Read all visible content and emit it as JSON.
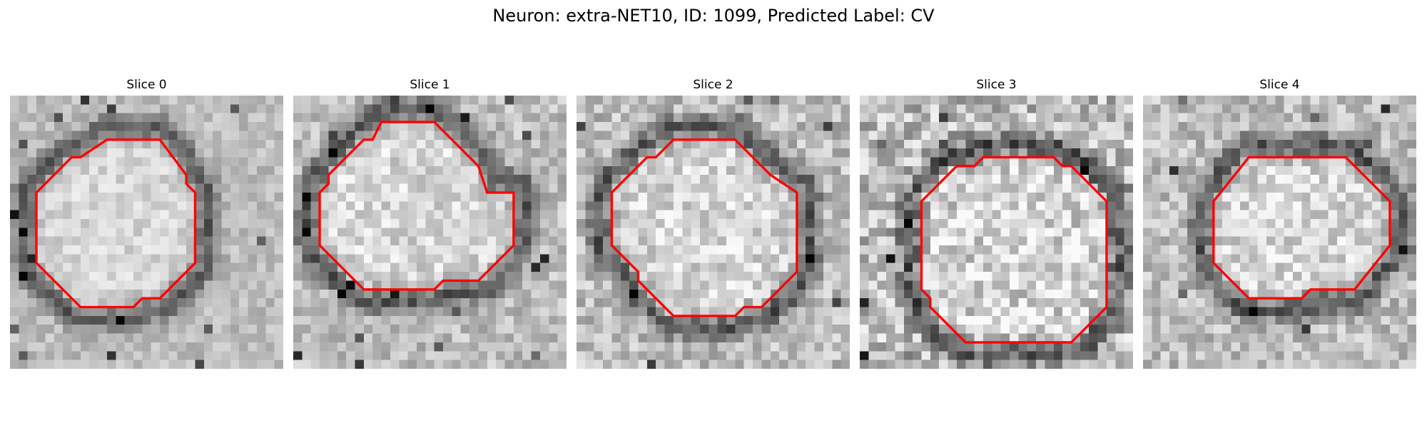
{
  "figure": {
    "title": "Neuron: extra-NET10, ID: 1099, Predicted Label: CV"
  },
  "contour_color": "#ff0000",
  "colormap": "gray",
  "grid_size": 31,
  "panels": [
    {
      "title": "Slice 0",
      "contour": [
        [
          11,
          5
        ],
        [
          17,
          5
        ],
        [
          20,
          9
        ],
        [
          20,
          10
        ],
        [
          21,
          11
        ],
        [
          21,
          19
        ],
        [
          17,
          23
        ],
        [
          15,
          23
        ],
        [
          14,
          24
        ],
        [
          8,
          24
        ],
        [
          3,
          19
        ],
        [
          3,
          11
        ],
        [
          7,
          7
        ],
        [
          8,
          7
        ]
      ]
    },
    {
      "title": "Slice 1",
      "contour": [
        [
          10,
          3
        ],
        [
          16,
          3
        ],
        [
          21,
          8
        ],
        [
          22,
          11
        ],
        [
          25,
          11
        ],
        [
          25,
          17
        ],
        [
          21,
          21
        ],
        [
          17,
          21
        ],
        [
          16,
          22
        ],
        [
          8,
          22
        ],
        [
          3,
          17
        ],
        [
          3,
          11
        ],
        [
          4,
          10
        ],
        [
          4,
          9
        ],
        [
          8,
          5
        ],
        [
          9,
          5
        ]
      ]
    },
    {
      "title": "Slice 2",
      "contour": [
        [
          11,
          5
        ],
        [
          18,
          5
        ],
        [
          22,
          9
        ],
        [
          25,
          11
        ],
        [
          25,
          20
        ],
        [
          21,
          24
        ],
        [
          19,
          24
        ],
        [
          18,
          25
        ],
        [
          11,
          25
        ],
        [
          7,
          21
        ],
        [
          7,
          20
        ],
        [
          4,
          17
        ],
        [
          4,
          11
        ],
        [
          8,
          7
        ],
        [
          9,
          7
        ]
      ]
    },
    {
      "title": "Slice 3",
      "contour": [
        [
          14,
          7
        ],
        [
          22,
          7
        ],
        [
          23,
          8
        ],
        [
          24,
          8
        ],
        [
          28,
          12
        ],
        [
          28,
          24
        ],
        [
          24,
          28
        ],
        [
          12,
          28
        ],
        [
          8,
          24
        ],
        [
          8,
          23
        ],
        [
          7,
          22
        ],
        [
          7,
          12
        ],
        [
          11,
          8
        ],
        [
          13,
          8
        ]
      ]
    },
    {
      "title": "Slice 4",
      "contour": [
        [
          12,
          7
        ],
        [
          23,
          7
        ],
        [
          28,
          12
        ],
        [
          28,
          17
        ],
        [
          24,
          22
        ],
        [
          19,
          22
        ],
        [
          18,
          23
        ],
        [
          12,
          23
        ],
        [
          8,
          19
        ],
        [
          8,
          12
        ]
      ]
    }
  ]
}
